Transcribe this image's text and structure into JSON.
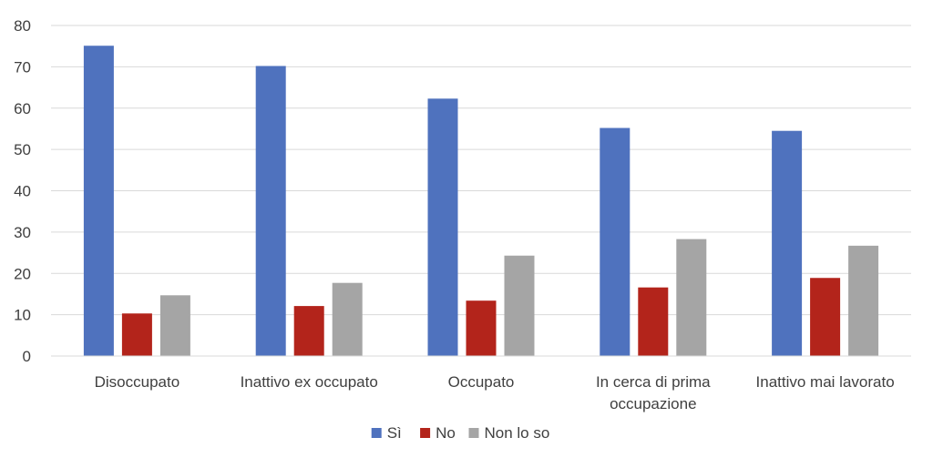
{
  "chart_data": {
    "type": "bar",
    "categories": [
      [
        "Disoccupato"
      ],
      [
        "Inattivo ex occupato"
      ],
      [
        "Occupato"
      ],
      [
        "In cerca di prima",
        "occupazione"
      ],
      [
        "Inattivo mai lavorato"
      ]
    ],
    "series": [
      {
        "name": "Sì",
        "color": "#4f72be",
        "values": [
          75.1,
          70.2,
          62.3,
          55.2,
          54.5
        ]
      },
      {
        "name": "No",
        "color": "#b3241b",
        "values": [
          10.3,
          12.1,
          13.4,
          16.6,
          18.9
        ]
      },
      {
        "name": "Non lo so",
        "color": "#a5a5a5",
        "values": [
          14.7,
          17.7,
          24.3,
          28.3,
          26.7
        ]
      }
    ],
    "yticks": [
      "0",
      "10",
      "20",
      "30",
      "40",
      "50",
      "60",
      "70",
      "80"
    ],
    "ylim": [
      0,
      80
    ],
    "grid": true,
    "legend_position": "bottom"
  }
}
